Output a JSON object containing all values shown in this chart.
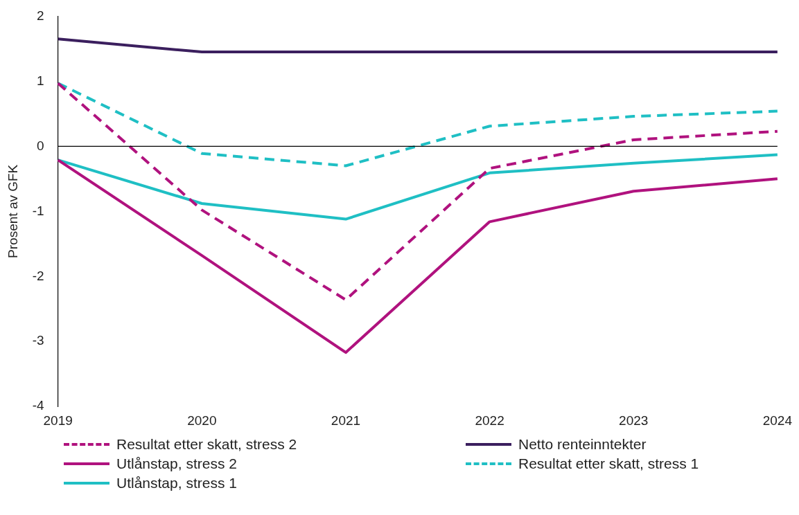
{
  "chart_data": {
    "type": "line",
    "ylabel": "Prosent av GFK",
    "categories": [
      "2019",
      "2020",
      "2021",
      "2022",
      "2023",
      "2024"
    ],
    "ylim": [
      -4,
      2
    ],
    "yticks": [
      -4,
      -3,
      -2,
      -1,
      0,
      1,
      2
    ],
    "grid": false,
    "legend": "bottom",
    "marker": "none",
    "ref_lines": [
      {
        "axis": "y",
        "value": 0,
        "color": "#000000"
      }
    ],
    "series": [
      {
        "name": "Resultat etter skatt, stress 2",
        "color": "#b0127e",
        "line_style": "dashed",
        "values": [
          0.97,
          -0.98,
          -2.36,
          -0.34,
          0.1,
          0.23
        ]
      },
      {
        "name": "Netto renteinntekter",
        "color": "#3b1f5e",
        "line_style": "solid",
        "values": [
          1.65,
          1.45,
          1.45,
          1.45,
          1.45,
          1.45
        ]
      },
      {
        "name": "Utlånstap, stress 2",
        "color": "#b0127e",
        "line_style": "solid",
        "values": [
          -0.21,
          -1.68,
          -3.17,
          -1.16,
          -0.69,
          -0.5
        ]
      },
      {
        "name": "Resultat etter skatt, stress 1",
        "color": "#1fbfc4",
        "line_style": "dashed",
        "values": [
          0.97,
          -0.11,
          -0.3,
          0.31,
          0.46,
          0.54
        ]
      },
      {
        "name": "Utlånstap, stress 1",
        "color": "#1fbfc4",
        "line_style": "solid",
        "values": [
          -0.21,
          -0.88,
          -1.12,
          -0.41,
          -0.26,
          -0.13
        ]
      }
    ]
  }
}
